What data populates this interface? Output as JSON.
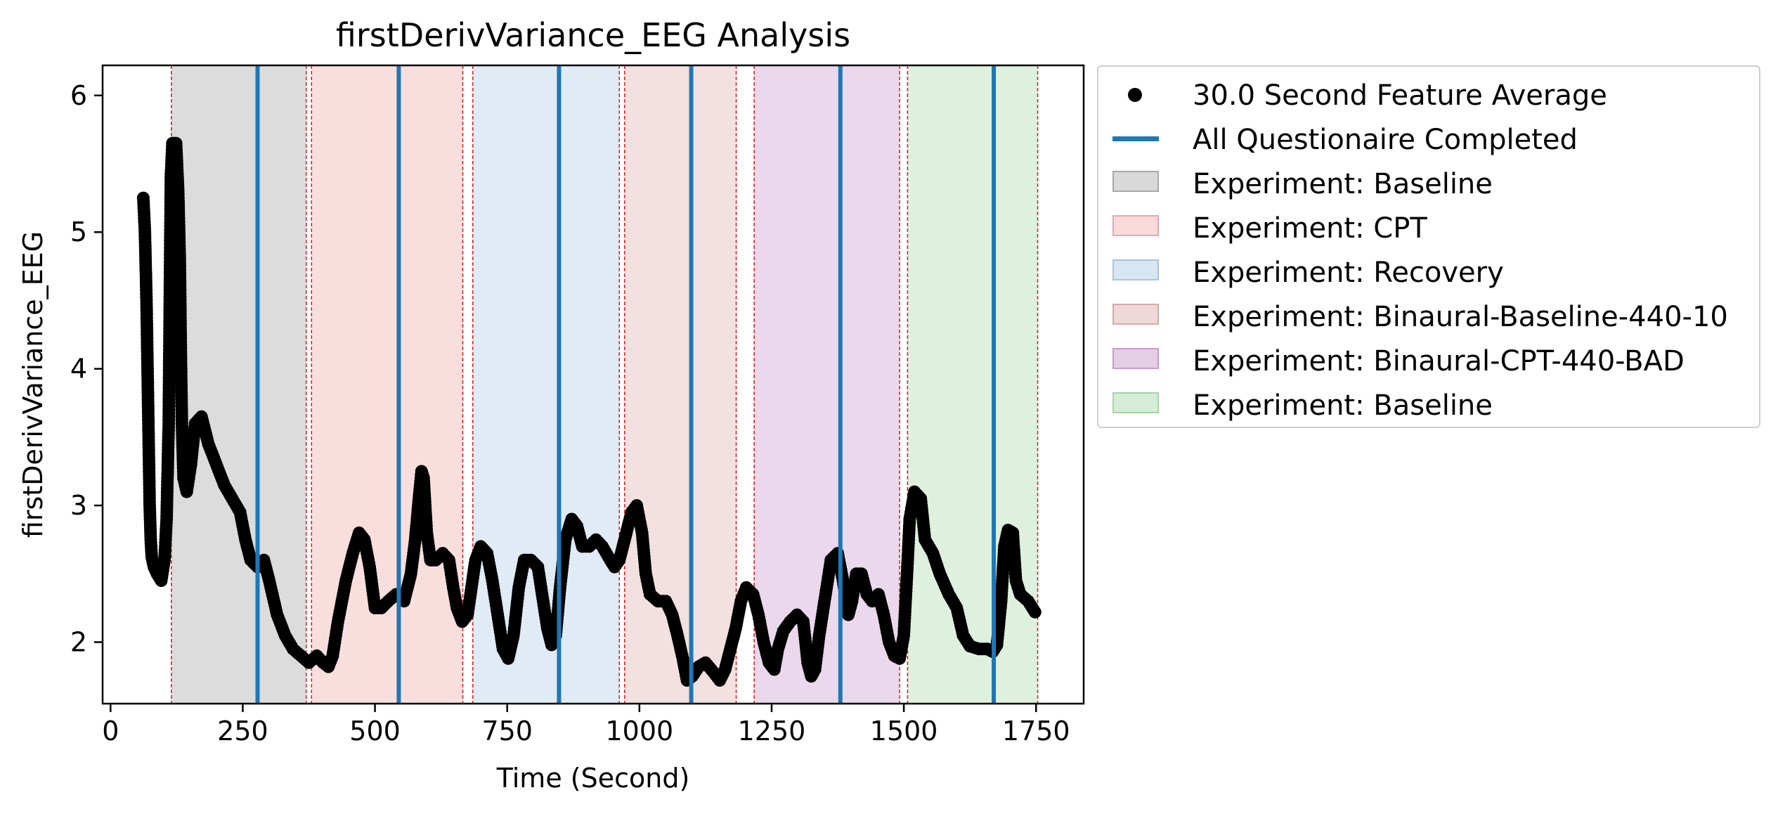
{
  "chart_data": {
    "type": "scatter",
    "title": "firstDerivVariance_EEG Analysis",
    "xlabel": "Time (Second)",
    "ylabel": "firstDerivVariance_EEG",
    "xlim": [
      -15,
      1840
    ],
    "ylim": [
      1.55,
      6.22
    ],
    "xticks": [
      0,
      250,
      500,
      750,
      1000,
      1250,
      1500,
      1750
    ],
    "yticks": [
      2,
      3,
      4,
      5,
      6
    ],
    "grid": false,
    "legend_position": "outside-right",
    "series": [
      {
        "name": "30.0 Second Feature Average",
        "kind": "scatter",
        "color": "#000000",
        "anchors": [
          [
            62,
            5.25
          ],
          [
            65,
            5.0
          ],
          [
            68,
            4.5
          ],
          [
            70,
            4.0
          ],
          [
            72,
            3.5
          ],
          [
            74,
            3.0
          ],
          [
            76,
            2.75
          ],
          [
            78,
            2.62
          ],
          [
            82,
            2.55
          ],
          [
            88,
            2.5
          ],
          [
            96,
            2.45
          ],
          [
            102,
            2.6
          ],
          [
            106,
            2.9
          ],
          [
            110,
            3.6
          ],
          [
            112,
            4.5
          ],
          [
            114,
            5.4
          ],
          [
            117,
            5.65
          ],
          [
            124,
            5.65
          ],
          [
            128,
            5.3
          ],
          [
            131,
            4.8
          ],
          [
            133,
            4.1
          ],
          [
            135,
            3.6
          ],
          [
            138,
            3.2
          ],
          [
            144,
            3.1
          ],
          [
            152,
            3.3
          ],
          [
            160,
            3.6
          ],
          [
            172,
            3.65
          ],
          [
            185,
            3.45
          ],
          [
            200,
            3.3
          ],
          [
            215,
            3.15
          ],
          [
            230,
            3.05
          ],
          [
            245,
            2.95
          ],
          [
            255,
            2.75
          ],
          [
            265,
            2.6
          ],
          [
            278,
            2.55
          ],
          [
            290,
            2.6
          ],
          [
            300,
            2.45
          ],
          [
            315,
            2.2
          ],
          [
            330,
            2.05
          ],
          [
            345,
            1.95
          ],
          [
            360,
            1.9
          ],
          [
            375,
            1.85
          ],
          [
            390,
            1.9
          ],
          [
            402,
            1.85
          ],
          [
            412,
            1.82
          ],
          [
            420,
            1.9
          ],
          [
            430,
            2.15
          ],
          [
            445,
            2.45
          ],
          [
            458,
            2.65
          ],
          [
            470,
            2.8
          ],
          [
            480,
            2.75
          ],
          [
            490,
            2.55
          ],
          [
            500,
            2.25
          ],
          [
            512,
            2.25
          ],
          [
            525,
            2.3
          ],
          [
            540,
            2.35
          ],
          [
            555,
            2.3
          ],
          [
            568,
            2.5
          ],
          [
            576,
            2.75
          ],
          [
            583,
            3.05
          ],
          [
            588,
            3.25
          ],
          [
            592,
            3.2
          ],
          [
            598,
            2.8
          ],
          [
            605,
            2.6
          ],
          [
            615,
            2.6
          ],
          [
            628,
            2.65
          ],
          [
            640,
            2.6
          ],
          [
            648,
            2.4
          ],
          [
            655,
            2.25
          ],
          [
            665,
            2.15
          ],
          [
            675,
            2.2
          ],
          [
            690,
            2.6
          ],
          [
            700,
            2.7
          ],
          [
            712,
            2.65
          ],
          [
            722,
            2.45
          ],
          [
            732,
            2.2
          ],
          [
            742,
            1.95
          ],
          [
            752,
            1.88
          ],
          [
            762,
            2.05
          ],
          [
            772,
            2.4
          ],
          [
            782,
            2.6
          ],
          [
            795,
            2.6
          ],
          [
            808,
            2.55
          ],
          [
            818,
            2.3
          ],
          [
            826,
            2.1
          ],
          [
            834,
            1.98
          ],
          [
            842,
            2.05
          ],
          [
            850,
            2.4
          ],
          [
            860,
            2.75
          ],
          [
            872,
            2.9
          ],
          [
            882,
            2.85
          ],
          [
            892,
            2.7
          ],
          [
            905,
            2.7
          ],
          [
            918,
            2.75
          ],
          [
            930,
            2.7
          ],
          [
            942,
            2.62
          ],
          [
            953,
            2.55
          ],
          [
            962,
            2.6
          ],
          [
            972,
            2.75
          ],
          [
            985,
            2.95
          ],
          [
            995,
            3.0
          ],
          [
            1005,
            2.8
          ],
          [
            1012,
            2.5
          ],
          [
            1020,
            2.35
          ],
          [
            1035,
            2.3
          ],
          [
            1050,
            2.3
          ],
          [
            1062,
            2.2
          ],
          [
            1072,
            2.05
          ],
          [
            1082,
            1.88
          ],
          [
            1090,
            1.72
          ],
          [
            1100,
            1.75
          ],
          [
            1112,
            1.82
          ],
          [
            1125,
            1.85
          ],
          [
            1140,
            1.78
          ],
          [
            1152,
            1.72
          ],
          [
            1162,
            1.8
          ],
          [
            1172,
            1.95
          ],
          [
            1182,
            2.1
          ],
          [
            1192,
            2.3
          ],
          [
            1202,
            2.4
          ],
          [
            1215,
            2.35
          ],
          [
            1225,
            2.2
          ],
          [
            1235,
            2.0
          ],
          [
            1245,
            1.85
          ],
          [
            1255,
            1.8
          ],
          [
            1262,
            1.95
          ],
          [
            1272,
            2.08
          ],
          [
            1285,
            2.15
          ],
          [
            1298,
            2.2
          ],
          [
            1310,
            2.15
          ],
          [
            1318,
            1.85
          ],
          [
            1325,
            1.75
          ],
          [
            1332,
            1.8
          ],
          [
            1340,
            2.05
          ],
          [
            1350,
            2.3
          ],
          [
            1362,
            2.6
          ],
          [
            1375,
            2.65
          ],
          [
            1385,
            2.45
          ],
          [
            1395,
            2.2
          ],
          [
            1402,
            2.3
          ],
          [
            1410,
            2.5
          ],
          [
            1420,
            2.5
          ],
          [
            1430,
            2.35
          ],
          [
            1440,
            2.3
          ],
          [
            1452,
            2.35
          ],
          [
            1462,
            2.2
          ],
          [
            1472,
            2.0
          ],
          [
            1482,
            1.9
          ],
          [
            1492,
            1.88
          ],
          [
            1500,
            2.05
          ],
          [
            1506,
            2.5
          ],
          [
            1511,
            2.9
          ],
          [
            1520,
            3.1
          ],
          [
            1532,
            3.05
          ],
          [
            1540,
            2.75
          ],
          [
            1555,
            2.65
          ],
          [
            1568,
            2.5
          ],
          [
            1585,
            2.35
          ],
          [
            1600,
            2.25
          ],
          [
            1612,
            2.05
          ],
          [
            1625,
            1.97
          ],
          [
            1642,
            1.95
          ],
          [
            1658,
            1.95
          ],
          [
            1668,
            1.93
          ],
          [
            1676,
            1.98
          ],
          [
            1684,
            2.3
          ],
          [
            1690,
            2.7
          ],
          [
            1697,
            2.82
          ],
          [
            1706,
            2.8
          ],
          [
            1712,
            2.45
          ],
          [
            1720,
            2.35
          ],
          [
            1735,
            2.3
          ],
          [
            1748,
            2.22
          ]
        ]
      },
      {
        "name": "All Questionaire Completed",
        "kind": "vlines",
        "color": "#1f77b4",
        "x": [
          278,
          545,
          848,
          1098,
          1380,
          1670
        ]
      }
    ],
    "regions": [
      {
        "name": "Experiment: Baseline",
        "x": [
          115,
          370
        ],
        "color": "#bfbfbf"
      },
      {
        "name": "Experiment: CPT",
        "x": [
          380,
          666
        ],
        "color": "#f4c2c2"
      },
      {
        "name": "Experiment: Recovery",
        "x": [
          685,
          962
        ],
        "color": "#c6dbee"
      },
      {
        "name": "Experiment: Binaural-Baseline-440-10",
        "x": [
          972,
          1183
        ],
        "color": "#e8c8c6"
      },
      {
        "name": "Experiment: Binaural-CPT-440-BAD",
        "x": [
          1217,
          1492
        ],
        "color": "#dab8dc"
      },
      {
        "name": "Experiment: Baseline",
        "x": [
          1507,
          1753
        ],
        "color": "#c3e6c3"
      }
    ],
    "boundary_lines": {
      "color": "#d62728",
      "x": [
        115,
        370,
        380,
        666,
        685,
        962,
        972,
        1183,
        1217,
        1492,
        1507,
        1753
      ]
    }
  }
}
